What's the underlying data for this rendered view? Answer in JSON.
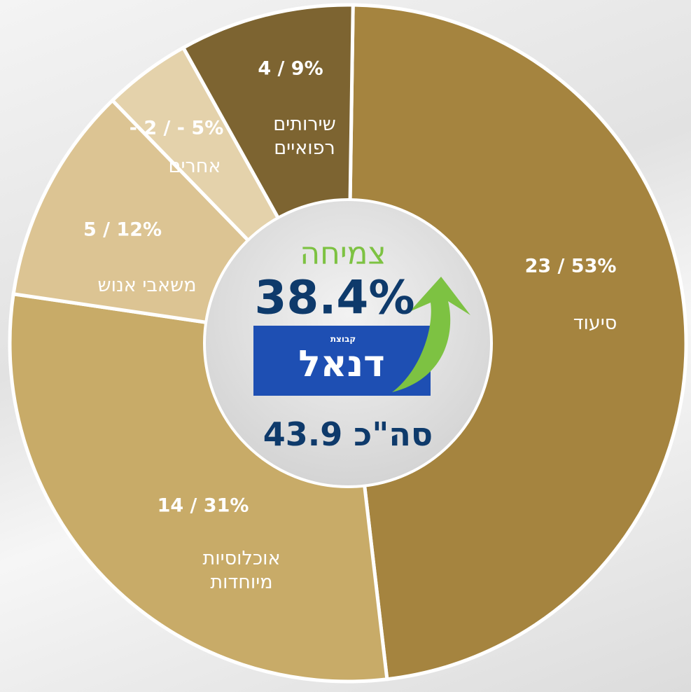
{
  "chart_data": {
    "type": "donut",
    "categories": [
      "סיעוד",
      "אוכלוסיות מיוחדות",
      "משאבי אנוש",
      "אחרים",
      "שירותים רפואיים"
    ],
    "values": [
      23,
      14,
      5,
      2,
      4
    ],
    "value_labels": [
      "23 / 53%",
      "14 / 31%",
      "5 / 12%",
      "- 2 / - 5%",
      "4 / 9%"
    ],
    "colors": [
      "#a5843f",
      "#c8ab68",
      "#dcc493",
      "#e4d2ab",
      "#7d6431"
    ],
    "center": {
      "growth_label": "צמיחה",
      "growth_value": "38.4%",
      "logo_small": "קבוצת",
      "logo": "דנאל",
      "total": "סה\"כ 43.9"
    }
  }
}
